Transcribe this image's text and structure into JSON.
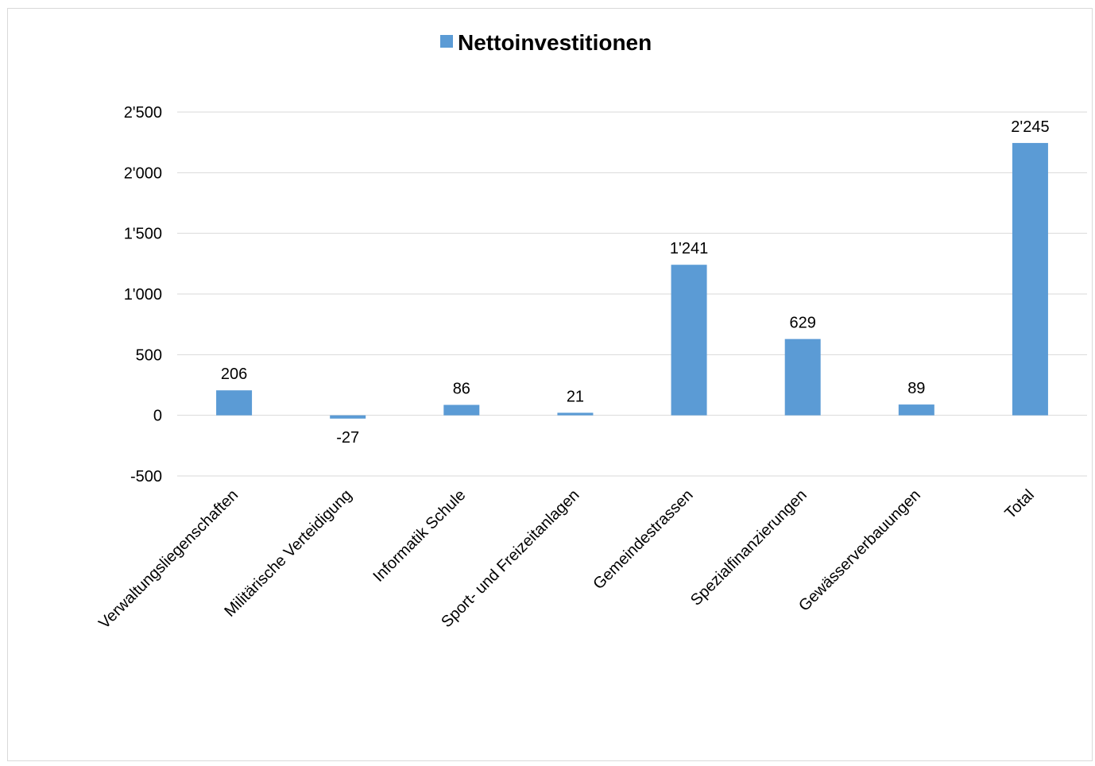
{
  "chart_data": {
    "type": "bar",
    "legend": {
      "position": "top",
      "entries": [
        "Nettoinvestitionen"
      ]
    },
    "categories": [
      "Verwaltungsliegenschaften",
      "Militärische Verteidigung",
      "Informatik Schule",
      "Sport- und Freizeitanlagen",
      "Gemeindestrassen",
      "Spezialfinanzierungen",
      "Gewässerverbauungen",
      "Total"
    ],
    "series": [
      {
        "name": "Nettoinvestitionen",
        "color": "#5b9bd5",
        "values": [
          206,
          -27,
          86,
          21,
          1241,
          629,
          89,
          2245
        ],
        "labels": [
          "206",
          "-27",
          "86",
          "21",
          "1'241",
          "629",
          "89",
          "2'245"
        ]
      }
    ],
    "ylim": [
      -500,
      2500
    ],
    "yticks": [
      -500,
      0,
      500,
      1000,
      1500,
      2000,
      2500
    ],
    "ytick_labels": [
      "-500",
      "0",
      "500",
      "1'000",
      "1'500",
      "2'000",
      "2'500"
    ],
    "grid": true,
    "xlabel": "",
    "ylabel": ""
  }
}
